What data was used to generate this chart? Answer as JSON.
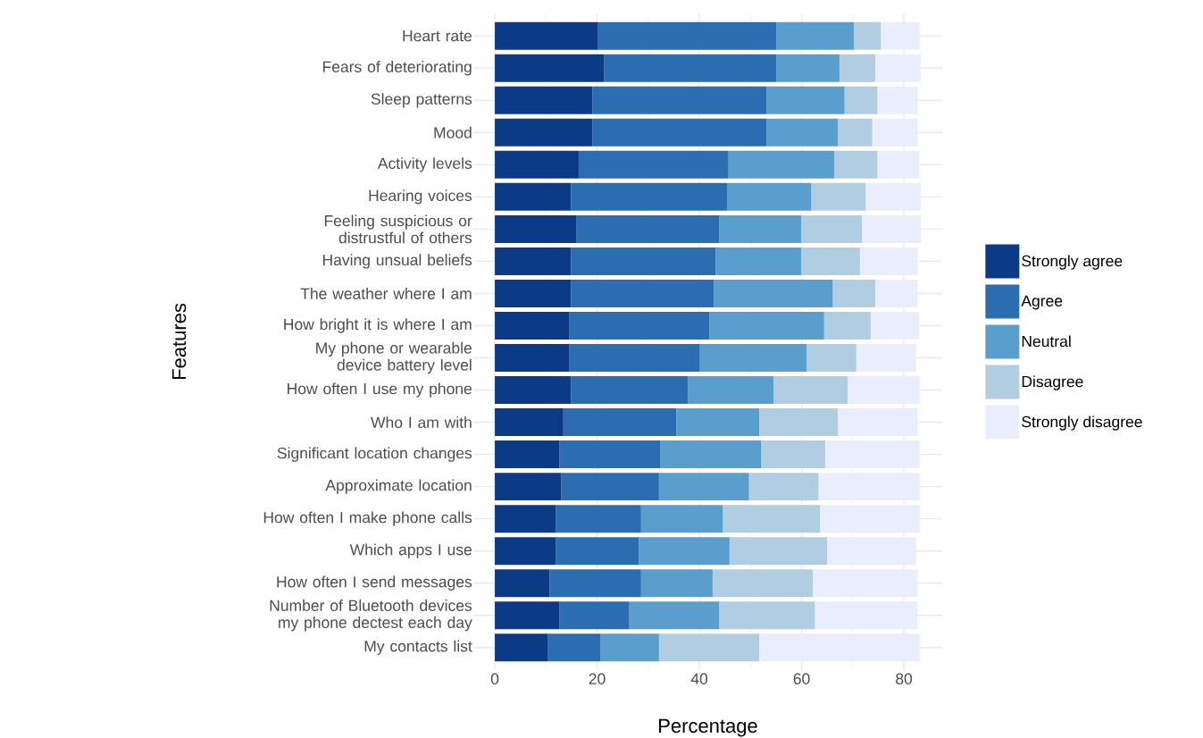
{
  "chart_data": {
    "type": "bar",
    "orientation": "horizontal",
    "stacked": true,
    "xlabel": "Percentage",
    "ylabel": "Features",
    "categories": [
      "Heart rate",
      "Fears of deteriorating",
      "Sleep patterns",
      "Mood",
      "Activity levels",
      "Hearing voices",
      "Feeling suspicious or distrustful of others",
      "Having unsual beliefs",
      "The weather where I am",
      "How bright it is where I am",
      "My phone or wearable device battery level",
      "How often I use my phone",
      "Who I am with",
      "Significant location changes",
      "Approximate location",
      "How often I make phone calls",
      "Which apps I use",
      "How often I send messages",
      "Number of Bluetooth devices my phone dectest each day",
      "My contacts list"
    ],
    "series": [
      {
        "name": "Strongly agree",
        "color": "#0b3a86",
        "values": [
          20.2,
          21.4,
          19.1,
          19.1,
          16.4,
          14.9,
          16.0,
          14.9,
          14.9,
          14.6,
          14.6,
          14.9,
          13.4,
          12.6,
          13.0,
          11.9,
          11.9,
          10.7,
          12.6,
          10.3
        ]
      },
      {
        "name": "Agree",
        "color": "#2a6db0",
        "values": [
          34.9,
          33.7,
          34.0,
          34.0,
          29.3,
          30.5,
          27.9,
          28.3,
          27.9,
          27.4,
          25.5,
          22.9,
          22.1,
          19.8,
          19.1,
          16.7,
          16.3,
          17.9,
          13.7,
          10.4
        ]
      },
      {
        "name": "Neutral",
        "color": "#5a9ecd",
        "values": [
          15.1,
          12.3,
          15.3,
          14.0,
          20.7,
          16.5,
          16.0,
          16.7,
          23.3,
          22.4,
          20.9,
          16.7,
          16.2,
          19.7,
          17.6,
          16.0,
          17.7,
          14.0,
          17.6,
          11.4
        ]
      },
      {
        "name": "Disagree",
        "color": "#b0cde2",
        "values": [
          5.3,
          7.0,
          6.4,
          6.7,
          8.4,
          10.6,
          11.9,
          11.5,
          8.3,
          9.1,
          9.7,
          14.5,
          15.4,
          12.5,
          13.6,
          19.0,
          19.1,
          19.6,
          18.7,
          19.6
        ]
      },
      {
        "name": "Strongly disagree",
        "color": "#eaeefc",
        "values": [
          7.6,
          8.9,
          7.9,
          8.9,
          8.2,
          10.8,
          11.5,
          11.3,
          8.3,
          9.5,
          11.7,
          14.1,
          15.6,
          18.5,
          19.8,
          19.5,
          17.4,
          20.5,
          20.1,
          31.4
        ]
      }
    ],
    "xlim": [
      -4.2,
      87.5
    ],
    "xticks": [
      0,
      20,
      40,
      60,
      80
    ],
    "grid": true,
    "legend": "right"
  }
}
